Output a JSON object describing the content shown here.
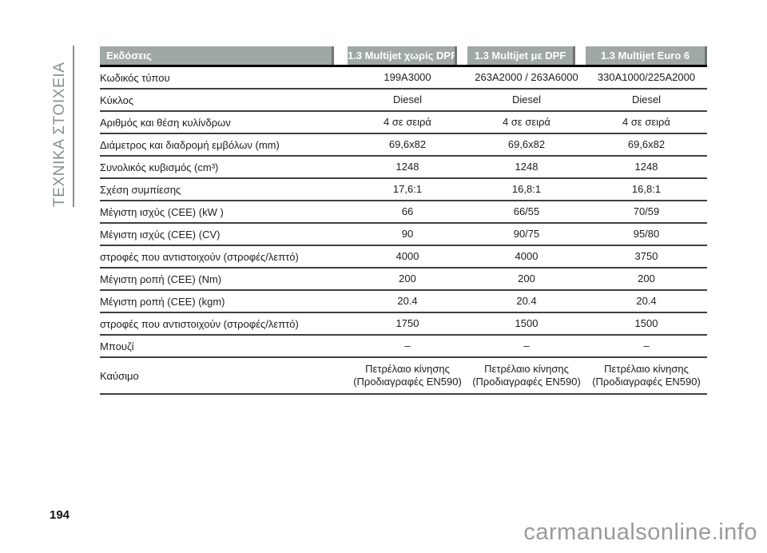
{
  "page": {
    "sidebar_label": "ΤΕΧΝΙΚΑ ΣΤΟΙΧΕΙΑ",
    "number": "194",
    "watermark": "carmanualsonline.info"
  },
  "colors": {
    "header_bg": "#a0a8a6",
    "header_shadow": "#6d7674",
    "sidebar_accent": "#83928e",
    "row_line": "#3f3f3f",
    "watermark_gray": "#9a9a9a"
  },
  "table": {
    "header": [
      "Εκδόσεις",
      "1.3 Multijet χωρίς DPF",
      "1.3 Multijet με DPF",
      "1.3 Multijet Euro 6"
    ],
    "rows": [
      {
        "label": "Κωδικός τύπου",
        "values": [
          "199A3000",
          "263A2000 / 263A6000",
          "330A1000/225A2000"
        ]
      },
      {
        "label": "Κύκλος",
        "values": [
          "Diesel",
          "Diesel",
          "Diesel"
        ]
      },
      {
        "label": "Αριθμός και θέση κυλίνδρων",
        "values": [
          "4 σε σειρά",
          "4 σε σειρά",
          "4 σε σειρά"
        ]
      },
      {
        "label": "Διάμετρος και διαδρομή εμβόλων (mm)",
        "values": [
          "69,6x82",
          "69,6x82",
          "69,6x82"
        ]
      },
      {
        "label": "Συνολικός κυβισμός (cm³)",
        "values": [
          "1248",
          "1248",
          "1248"
        ]
      },
      {
        "label": "Σχέση συμπίεσης",
        "values": [
          "17,6:1",
          "16,8:1",
          "16,8:1"
        ]
      },
      {
        "label": "Μέγιστη ισχύς (CEE) (kW )",
        "values": [
          "66",
          "66/55",
          "70/59"
        ]
      },
      {
        "label": "Μέγιστη ισχύς (CEE) (CV)",
        "values": [
          "90",
          "90/75",
          "95/80"
        ]
      },
      {
        "label": "στροφές που αντιστοιχούν (στροφές/λεπτό)",
        "values": [
          "4000",
          "4000",
          "3750"
        ]
      },
      {
        "label": "Μέγιστη ροπή (CEE) (Nm)",
        "values": [
          "200",
          "200",
          "200"
        ]
      },
      {
        "label": "Μέγιστη ροπή (CEE) (kgm)",
        "values": [
          "20.4",
          "20.4",
          "20.4"
        ]
      },
      {
        "label": "στροφές που αντιστοιχούν (στροφές/λεπτό)",
        "values": [
          "1750",
          "1500",
          "1500"
        ]
      },
      {
        "label": "Μπουζί",
        "values": [
          "–",
          "–",
          "–"
        ]
      },
      {
        "label": "Καύσιμο",
        "values": [
          "Πετρέλαιο κίνησης\n(Προδιαγραφές EN590)",
          "Πετρέλαιο κίνησης\n(Προδιαγραφές EN590)",
          "Πετρέλαιο κίνησης\n(Προδιαγραφές EN590)"
        ],
        "tall": true
      }
    ]
  }
}
